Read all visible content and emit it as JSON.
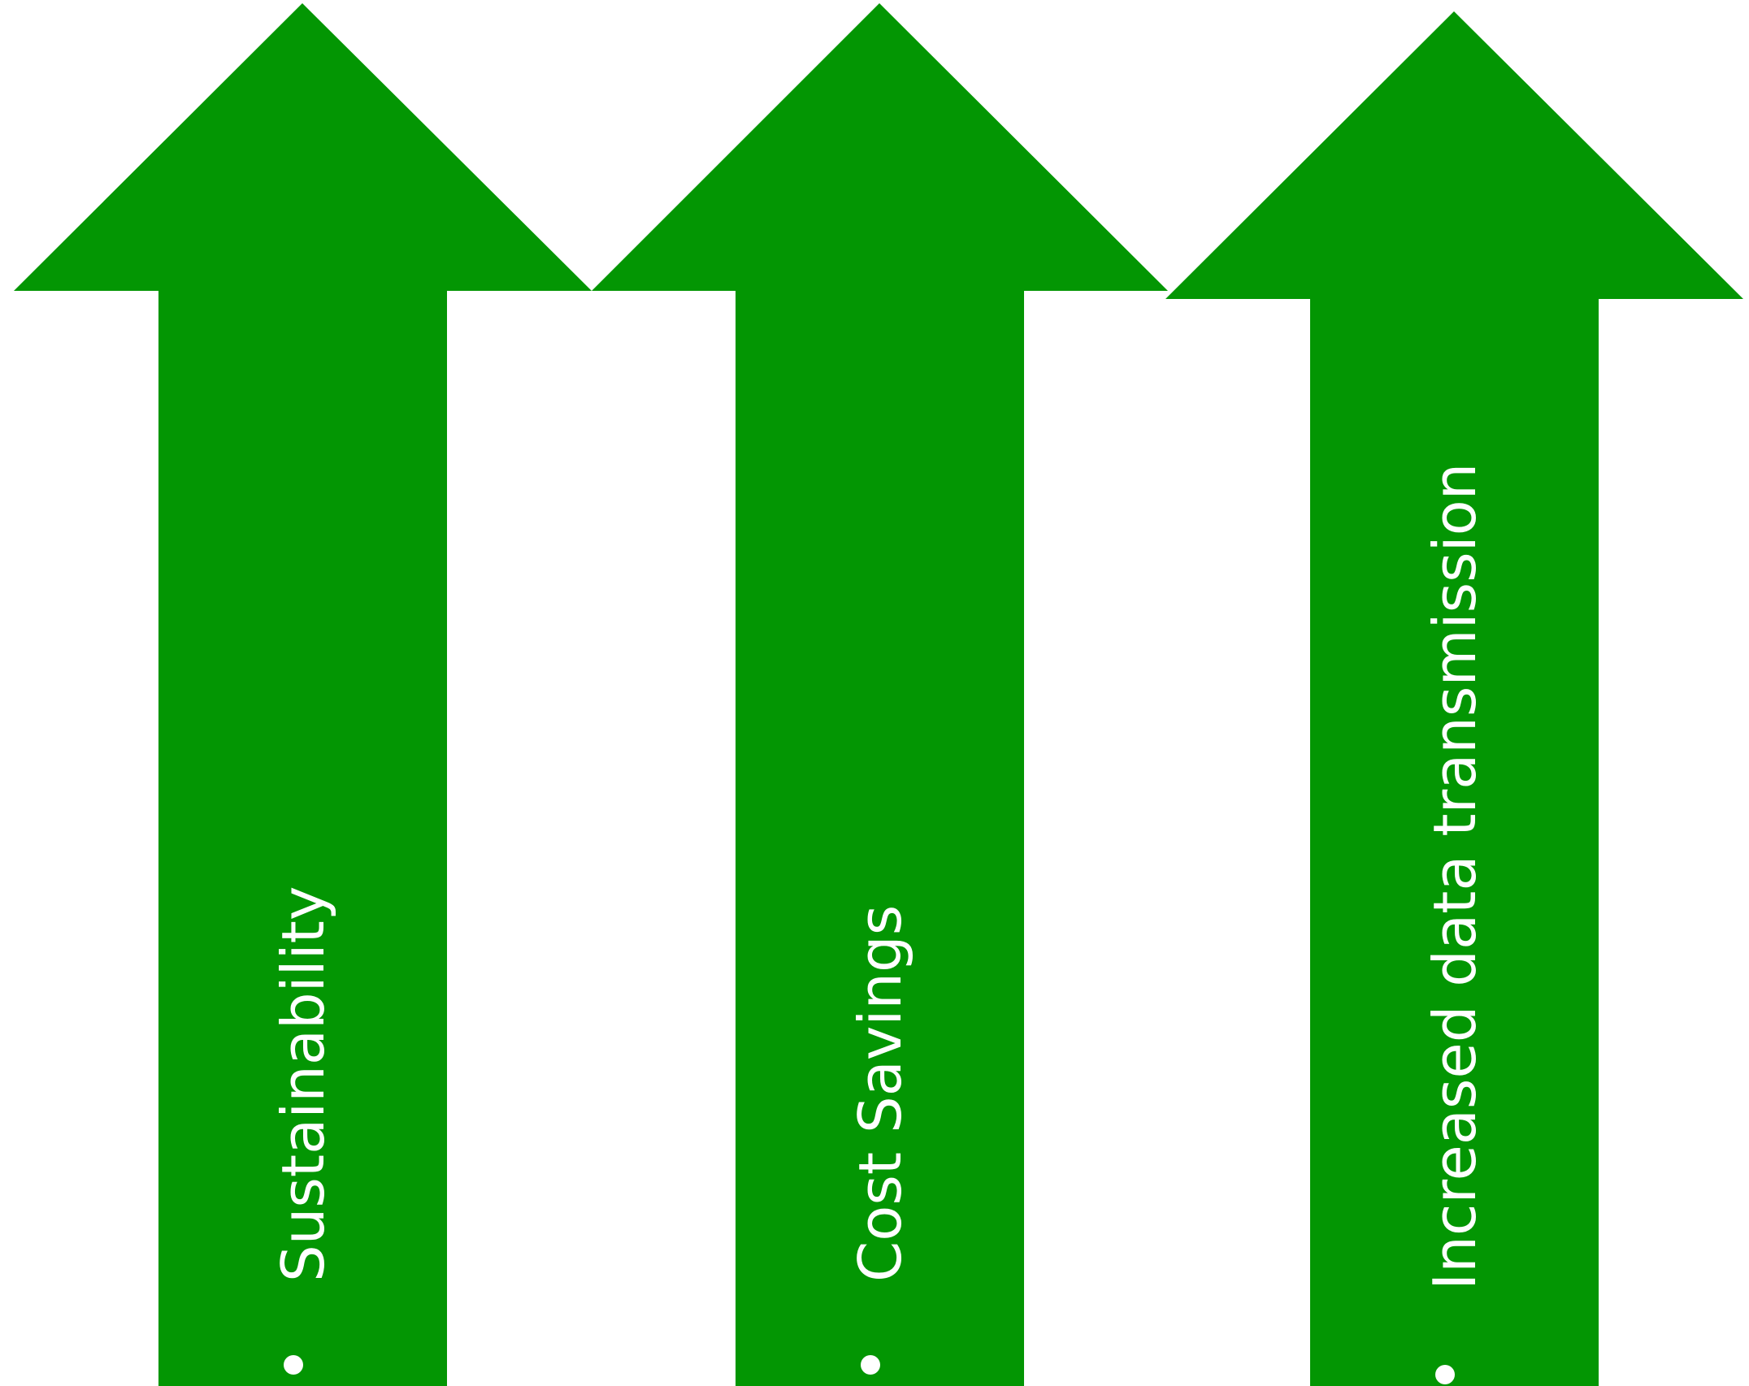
{
  "colors": {
    "arrow_fill": "#039603",
    "label_text": "#ffffff",
    "background": "#ffffff"
  },
  "arrows": [
    {
      "label": "Sustainability"
    },
    {
      "label": "Cost Savings"
    },
    {
      "label": "Increased data transmission"
    }
  ]
}
